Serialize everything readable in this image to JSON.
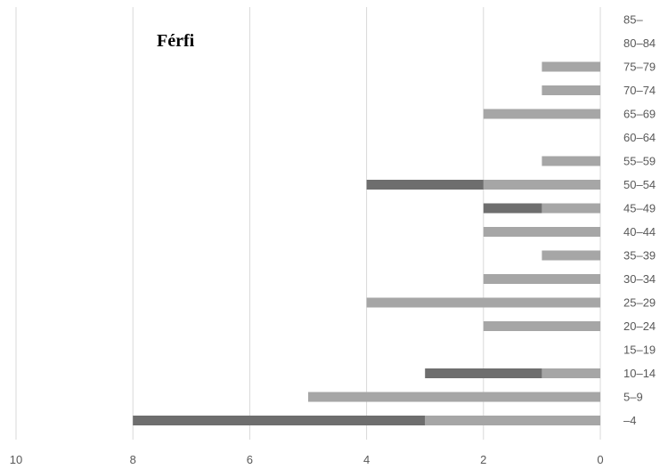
{
  "chart_data": {
    "type": "bar",
    "orientation": "horizontal",
    "stacked": true,
    "x_direction": "reversed",
    "title": "Férfi",
    "xlim": [
      0,
      10
    ],
    "x_ticks": [
      "10",
      "8",
      "6",
      "4",
      "2",
      "0"
    ],
    "grid": true,
    "legend": "none",
    "categories": [
      "85–",
      "80–84",
      "75–79",
      "70–74",
      "65–69",
      "60–64",
      "55–59",
      "50–54",
      "45–49",
      "40–44",
      "35–39",
      "30–34",
      "25–29",
      "20–24",
      "15–19",
      "10–14",
      "5–9",
      "–4"
    ],
    "series": [
      {
        "color": "#a6a6a6",
        "values": [
          0,
          0,
          1,
          1,
          2,
          0,
          1,
          2,
          1,
          2,
          1,
          2,
          4,
          2,
          0,
          1,
          5,
          3
        ]
      },
      {
        "color": "#6e6e6e",
        "values": [
          0,
          0,
          0,
          0,
          0,
          0,
          0,
          2,
          1,
          0,
          0,
          0,
          0,
          0,
          0,
          2,
          0,
          5
        ]
      }
    ]
  }
}
